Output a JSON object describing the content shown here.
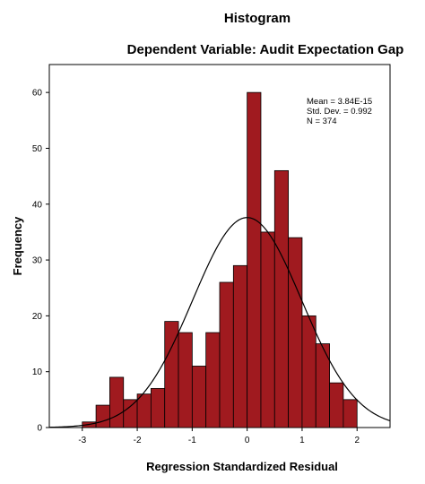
{
  "chart_data": {
    "type": "histogram",
    "title": "Histogram",
    "subtitle": "Dependent Variable: Audit Expectation Gap",
    "xlabel": "Regression Standardized Residual",
    "ylabel": "Frequency",
    "xlim": [
      -3.6,
      2.6
    ],
    "ylim": [
      0,
      65
    ],
    "x_ticks": [
      -3,
      -2,
      -1,
      0,
      1,
      2
    ],
    "y_ticks": [
      0,
      10,
      20,
      30,
      40,
      50,
      60
    ],
    "bin_width": 0.25,
    "bins": [
      {
        "x0": -3.0,
        "count": 1
      },
      {
        "x0": -2.75,
        "count": 4
      },
      {
        "x0": -2.5,
        "count": 9
      },
      {
        "x0": -2.25,
        "count": 5
      },
      {
        "x0": -2.0,
        "count": 6
      },
      {
        "x0": -1.75,
        "count": 7
      },
      {
        "x0": -1.5,
        "count": 19
      },
      {
        "x0": -1.25,
        "count": 17
      },
      {
        "x0": -1.0,
        "count": 11
      },
      {
        "x0": -0.75,
        "count": 17
      },
      {
        "x0": -0.5,
        "count": 26
      },
      {
        "x0": -0.25,
        "count": 29
      },
      {
        "x0": 0.0,
        "count": 60
      },
      {
        "x0": 0.25,
        "count": 35
      },
      {
        "x0": 0.5,
        "count": 46
      },
      {
        "x0": 0.75,
        "count": 34
      },
      {
        "x0": 1.0,
        "count": 20
      },
      {
        "x0": 1.25,
        "count": 15
      },
      {
        "x0": 1.5,
        "count": 8
      },
      {
        "x0": 1.75,
        "count": 5
      }
    ],
    "normal_curve": {
      "mean": 0,
      "sd": 0.992,
      "n": 374
    },
    "stats_box": {
      "mean_label": "Mean = 3.84E-15",
      "sd_label": "Std. Dev. = 0.992",
      "n_label": "N = 374"
    },
    "bar_color": "#a01a1f",
    "bar_edge_color": "#000000",
    "plot_bg": "#ffffff",
    "grid": false
  }
}
